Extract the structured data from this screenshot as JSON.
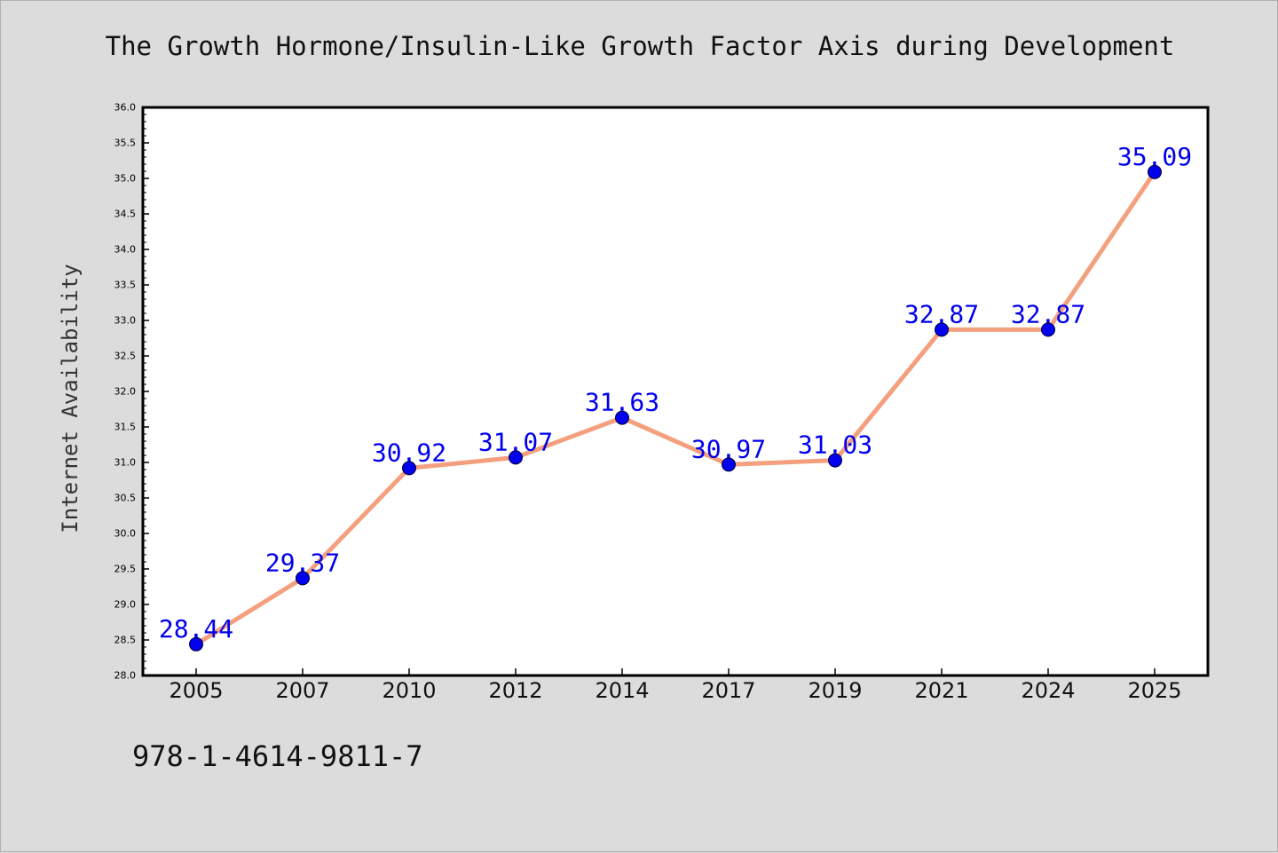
{
  "page": {
    "title": "The Growth Hormone/Insulin-Like Growth Factor Axis during Development",
    "footer_code": "978-1-4614-9811-7"
  },
  "chart_data": {
    "type": "line",
    "title": "The Growth Hormone/Insulin-Like Growth Factor Axis during Development",
    "xlabel": "",
    "ylabel": "Internet Availability",
    "categories": [
      "2005",
      "2007",
      "2010",
      "2012",
      "2014",
      "2017",
      "2019",
      "2021",
      "2024",
      "2025"
    ],
    "series": [
      {
        "values": [
          28.44,
          29.37,
          30.92,
          31.07,
          31.63,
          30.97,
          31.03,
          32.87,
          32.87,
          35.09
        ],
        "line_color": "#f4a07e",
        "marker_color": "#0000ee"
      }
    ],
    "data_labels": [
      "28.44",
      "29.37",
      "30.92",
      "31.07",
      "31.63",
      "30.97",
      "31.03",
      "32.87",
      "32.87",
      "35.09"
    ],
    "ylim": [
      28.0,
      36.0
    ],
    "y_major_ticks": [
      "28.0",
      "28.5",
      "29.0",
      "29.5",
      "30.0",
      "30.5",
      "31.0",
      "31.5",
      "32.0",
      "32.5",
      "33.0",
      "33.5",
      "34.0",
      "34.5",
      "35.0",
      "35.5",
      "36.0"
    ],
    "grid": false,
    "label_color": "#0000ee",
    "plot_background": "#ffffff",
    "page_background": "#dcdcdc"
  }
}
